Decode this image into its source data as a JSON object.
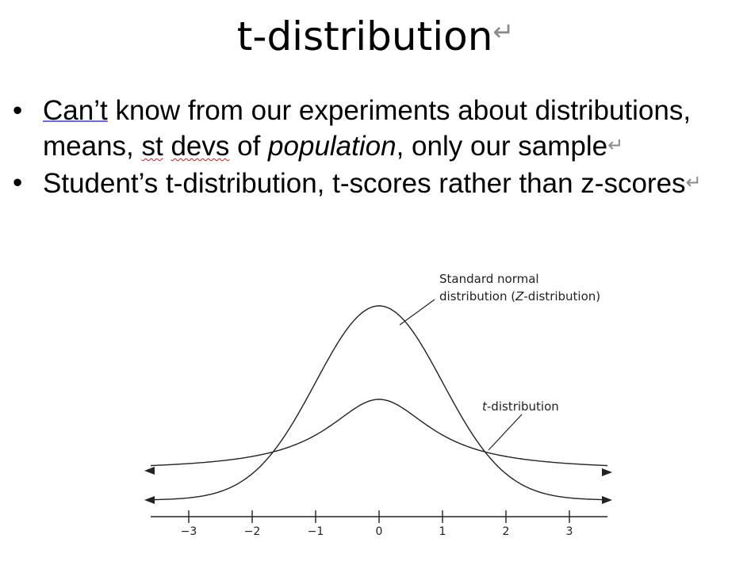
{
  "slide": {
    "title": "t-distribution",
    "title_return_mark": "↵",
    "bullet_glyph": "•",
    "return_mark": "↵",
    "bullets": [
      {
        "part1": "Can’t",
        "part2": " know from our experiments about distributions, means, ",
        "part3": "st",
        "part4": " ",
        "part5": "devs",
        "part6": " of ",
        "part7": "population",
        "part8": ", only our sample"
      },
      {
        "text": "Student’s t-distribution, t-scores rather than z-scores"
      }
    ]
  },
  "figure": {
    "normal_label_line1": "Standard normal",
    "normal_label_line2_pre": "distribution (",
    "normal_label_line2_italic": "Z",
    "normal_label_line2_post": "-distribution)",
    "t_label_italic": "t",
    "t_label_rest": "-distribution",
    "ticks": [
      "−3",
      "−2",
      "−1",
      "0",
      "1",
      "2",
      "3"
    ],
    "tick_values": [
      -3,
      -2,
      -1,
      0,
      1,
      2,
      3
    ],
    "t_dof": 1,
    "x_range": [
      -3.6,
      3.6
    ]
  }
}
